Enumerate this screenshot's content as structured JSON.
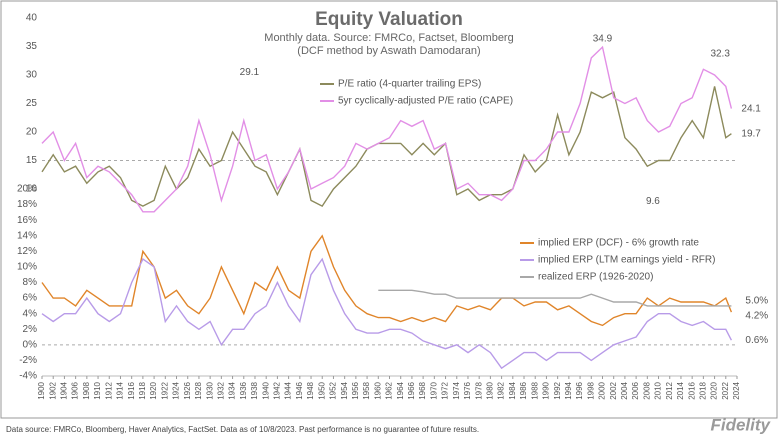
{
  "title": "Equity Valuation",
  "subtitle": "Monthly data.  Source: FMRCo, Factset, Bloomberg",
  "subtitle2": "(DCF method by Aswath Damodaran)",
  "footer": "Data source: FMRCo, Bloomberg, Haver Analytics, FactSet. Data as of 10/8/2023. Past performance is no guarantee of future results.",
  "logo": "Fidelity",
  "chart_data": [
    {
      "type": "line",
      "reference_line": 15,
      "ylim": [
        10,
        40
      ],
      "yticks": [
        10,
        15,
        20,
        25,
        30,
        35,
        40
      ],
      "xlim": [
        1900,
        2024
      ],
      "x": [
        1900,
        1902,
        1904,
        1906,
        1908,
        1910,
        1912,
        1914,
        1916,
        1918,
        1920,
        1922,
        1924,
        1926,
        1928,
        1930,
        1932,
        1934,
        1936,
        1938,
        1940,
        1942,
        1944,
        1946,
        1948,
        1950,
        1952,
        1954,
        1956,
        1958,
        1960,
        1962,
        1964,
        1966,
        1968,
        1970,
        1972,
        1974,
        1976,
        1978,
        1980,
        1982,
        1984,
        1986,
        1988,
        1990,
        1992,
        1994,
        1996,
        1998,
        2000,
        2002,
        2004,
        2006,
        2008,
        2010,
        2012,
        2014,
        2016,
        2018,
        2020,
        2022,
        2023
      ],
      "series": [
        {
          "name": "P/E ratio (4-quarter trailing EPS)",
          "color": "#8c8a5c",
          "values": [
            13,
            16,
            13,
            14,
            11,
            13,
            14,
            12,
            8,
            7,
            8,
            14,
            10,
            12,
            17,
            14,
            15,
            20,
            17,
            14,
            13,
            9,
            13,
            17,
            8,
            7,
            10,
            12,
            14,
            17,
            18,
            18,
            18,
            16,
            18,
            16,
            18,
            9,
            10,
            8,
            9,
            9,
            10,
            16,
            13,
            15,
            23,
            16,
            20,
            27,
            26,
            27,
            19,
            17,
            14,
            15,
            15,
            19,
            22,
            19,
            28,
            19,
            19.7
          ]
        },
        {
          "name": "5yr cyclically-adjusted P/E ratio (CAPE)",
          "color": "#e28fe6",
          "values": [
            18,
            20,
            15,
            18,
            12,
            14,
            13,
            11,
            9,
            6,
            6,
            8,
            10,
            14,
            22,
            16,
            8,
            14,
            22,
            15,
            16,
            10,
            13,
            17,
            10,
            11,
            12,
            14,
            18,
            17,
            18,
            19,
            22,
            21,
            22,
            17,
            18,
            10,
            11,
            9,
            9,
            8,
            10,
            15,
            15,
            17,
            20,
            20,
            25,
            33,
            34.9,
            26,
            25,
            26,
            22,
            20,
            21,
            25,
            26,
            31,
            30,
            28,
            24.1
          ]
        }
      ],
      "annotations": [
        {
          "label": "29.1",
          "value": 29.1,
          "x": 1937
        },
        {
          "label": "34.9",
          "value": 34.9,
          "x": 2000
        },
        {
          "label": "32.3",
          "value": 32.3,
          "x": 2021
        },
        {
          "label": "24.1",
          "value": 24.1,
          "x": 2023
        },
        {
          "label": "19.7",
          "value": 19.7,
          "x": 2023
        },
        {
          "label": "9.6",
          "value": 9.6,
          "x": 2009
        }
      ]
    },
    {
      "type": "line",
      "reference_line": 0,
      "ylim": [
        -4,
        20
      ],
      "yticks": [
        {
          "value": -4,
          "label": "-4%"
        },
        {
          "value": -2,
          "label": "-2%"
        },
        {
          "value": 0,
          "label": "0%"
        },
        {
          "value": 2,
          "label": "2%"
        },
        {
          "value": 4,
          "label": "4%"
        },
        {
          "value": 6,
          "label": "6%"
        },
        {
          "value": 8,
          "label": "8%"
        },
        {
          "value": 10,
          "label": "10%"
        },
        {
          "value": 12,
          "label": "12%"
        },
        {
          "value": 14,
          "label": "14%"
        },
        {
          "value": 16,
          "label": "16%"
        },
        {
          "value": 18,
          "label": "18%"
        },
        {
          "value": 20,
          "label": "20%"
        }
      ],
      "xlim": [
        1900,
        2024
      ],
      "xticks": [
        1900,
        1902,
        1904,
        1906,
        1908,
        1910,
        1912,
        1914,
        1916,
        1918,
        1920,
        1922,
        1924,
        1926,
        1928,
        1930,
        1932,
        1934,
        1936,
        1938,
        1940,
        1942,
        1944,
        1946,
        1948,
        1950,
        1952,
        1954,
        1956,
        1958,
        1960,
        1962,
        1964,
        1966,
        1968,
        1970,
        1972,
        1974,
        1976,
        1978,
        1980,
        1982,
        1984,
        1986,
        1988,
        1990,
        1992,
        1994,
        1996,
        1998,
        2000,
        2002,
        2004,
        2006,
        2008,
        2010,
        2012,
        2014,
        2016,
        2018,
        2020,
        2022,
        2024
      ],
      "x": [
        1900,
        1902,
        1904,
        1906,
        1908,
        1910,
        1912,
        1914,
        1916,
        1918,
        1920,
        1922,
        1924,
        1926,
        1928,
        1930,
        1932,
        1934,
        1936,
        1938,
        1940,
        1942,
        1944,
        1946,
        1948,
        1950,
        1952,
        1954,
        1956,
        1958,
        1960,
        1962,
        1964,
        1966,
        1968,
        1970,
        1972,
        1974,
        1976,
        1978,
        1980,
        1982,
        1984,
        1986,
        1988,
        1990,
        1992,
        1994,
        1996,
        1998,
        2000,
        2002,
        2004,
        2006,
        2008,
        2010,
        2012,
        2014,
        2016,
        2018,
        2020,
        2022,
        2023
      ],
      "series": [
        {
          "name": "implied ERP (DCF) - 6% growth rate",
          "color": "#e0852a",
          "values": [
            8,
            6,
            6,
            5,
            7,
            6,
            5,
            5,
            5,
            12,
            10,
            6,
            7,
            5,
            4,
            6,
            10,
            7,
            4,
            8,
            7,
            10,
            7,
            6,
            12,
            14,
            10,
            7,
            5,
            4,
            3.5,
            3.5,
            3,
            3.5,
            3,
            3.5,
            3,
            5,
            4.5,
            5,
            4.5,
            6,
            6,
            5,
            5.5,
            5.5,
            4.5,
            5,
            4,
            3,
            2.5,
            3.5,
            4,
            4,
            6,
            5,
            6,
            5.5,
            5.5,
            5.5,
            5,
            6,
            4.2
          ]
        },
        {
          "name": "implied ERP (LTM earnings yield - RFR)",
          "color": "#b89be8",
          "values": [
            4,
            3,
            4,
            4,
            6,
            4,
            3,
            4,
            8,
            11,
            10,
            3,
            5,
            3,
            2,
            3,
            0,
            2,
            2,
            4,
            5,
            8,
            5,
            3,
            9,
            11,
            7,
            4,
            2,
            1.5,
            1.5,
            2,
            2,
            1.5,
            0.5,
            0,
            -0.5,
            0,
            -1,
            0,
            -1,
            -3,
            -2,
            -1,
            -1,
            -2,
            -1,
            -1,
            -1,
            -2,
            -1,
            0,
            0.5,
            1,
            3,
            4,
            4,
            3,
            2.5,
            3,
            2,
            2,
            0.6
          ]
        },
        {
          "name": "realized ERP (1926-2020)",
          "color": "#a8a8a8",
          "values": [
            null,
            null,
            null,
            null,
            null,
            null,
            null,
            null,
            null,
            null,
            null,
            null,
            null,
            null,
            null,
            null,
            null,
            null,
            null,
            null,
            null,
            null,
            null,
            null,
            null,
            null,
            null,
            null,
            null,
            null,
            7,
            7,
            7,
            7,
            6.8,
            6.5,
            6.5,
            6,
            6,
            6,
            6,
            6,
            6,
            6,
            6,
            6,
            6,
            6,
            6,
            6.5,
            6,
            5.5,
            5.5,
            5.5,
            5,
            5,
            5,
            5,
            5,
            5,
            5,
            5,
            5.0
          ]
        }
      ],
      "annotations": [
        {
          "label": "5.0%",
          "value": 5.0,
          "x": 2023
        },
        {
          "label": "4.2%",
          "value": 4.2,
          "x": 2023
        },
        {
          "label": "0.6%",
          "value": 0.6,
          "x": 2023
        }
      ]
    }
  ]
}
